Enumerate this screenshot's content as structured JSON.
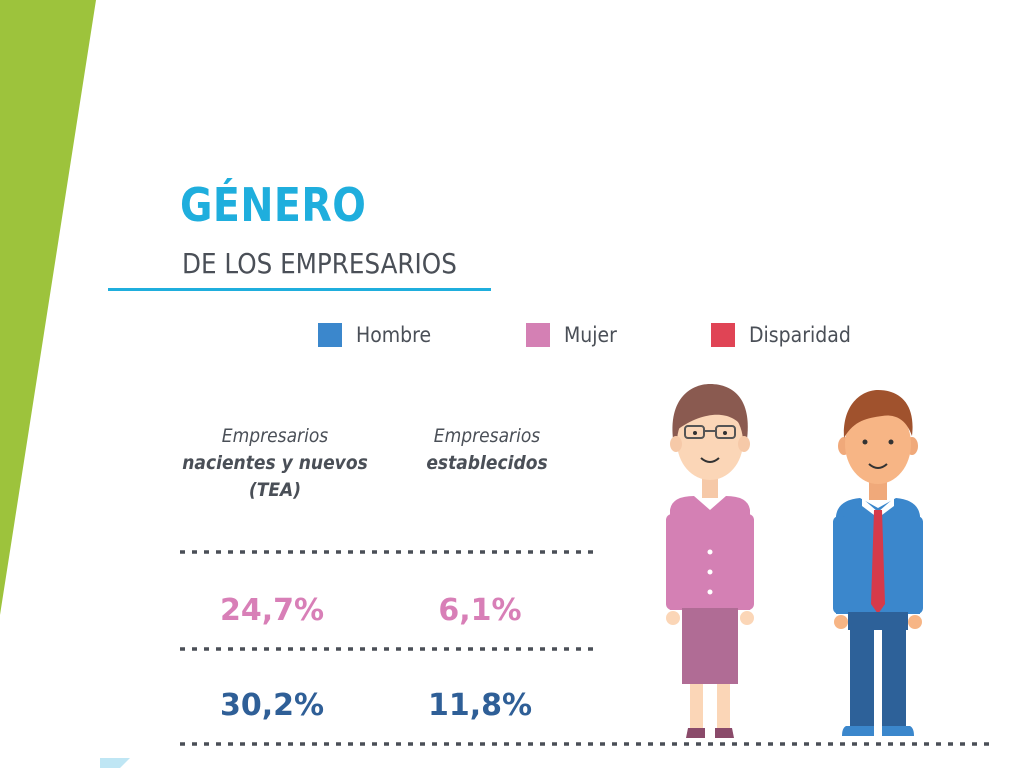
{
  "colors": {
    "accent_green": "#9dc33c",
    "title_blue": "#1faedd",
    "hombre": "#3b87cc",
    "mujer": "#d480b4",
    "disparidad": "#e04455",
    "text_gray": "#4a4f57",
    "value_pink": "#d87fb7",
    "value_blue": "#2f5f97",
    "dots_gray": "#4a4f57"
  },
  "title": "GÉNERO",
  "subtitle": "DE LOS EMPRESARIOS",
  "legend": [
    {
      "label": "Hombre",
      "color": "#3b87cc",
      "icon": "square"
    },
    {
      "label": "Mujer",
      "color": "#d480b4",
      "icon": "square"
    },
    {
      "label": "Disparidad",
      "color": "#e04455",
      "icon": "square"
    }
  ],
  "columns": [
    {
      "line1": "Empresarios",
      "line2": "nacientes y nuevos",
      "line3": "(TEA)"
    },
    {
      "line1": "Empresarios",
      "line2": "establecidos",
      "line3": ""
    }
  ],
  "illustrations": [
    "woman-figure",
    "man-figure"
  ],
  "chart_data": {
    "type": "table",
    "title": "GÉNERO DE LOS EMPRESARIOS",
    "columns": [
      "Empresarios nacientes y nuevos (TEA)",
      "Empresarios establecidos"
    ],
    "rows": [
      {
        "group": "Mujer",
        "color": "#d87fb7",
        "values": [
          24.7,
          6.1
        ],
        "labels": [
          "24,7%",
          "6,1%"
        ]
      },
      {
        "group": "Hombre",
        "color": "#2f5f97",
        "values": [
          30.2,
          11.8
        ],
        "labels": [
          "30,2%",
          "11,8%"
        ]
      }
    ]
  }
}
